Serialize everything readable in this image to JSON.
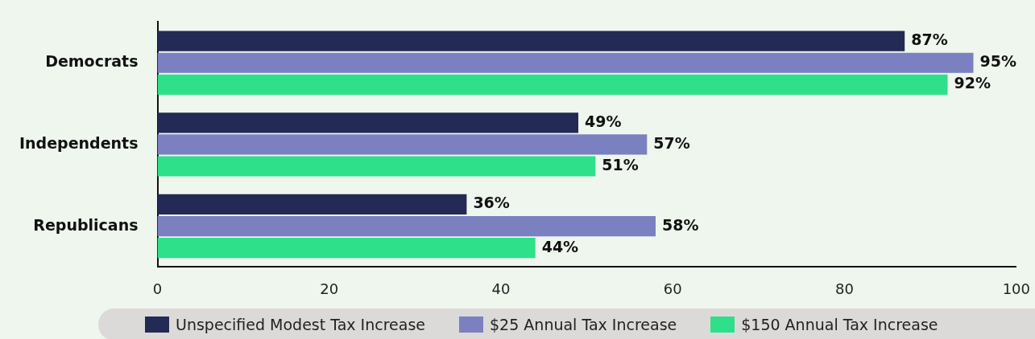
{
  "chart_data": {
    "type": "bar",
    "orientation": "horizontal",
    "categories": [
      "Democrats",
      "Independents",
      "Republicans"
    ],
    "series": [
      {
        "name": "Unspecified Modest Tax Increase",
        "color": "#232a55",
        "values": [
          87,
          49,
          36
        ],
        "value_labels": [
          "87%",
          "49%",
          "36%"
        ]
      },
      {
        "name": "$25 Annual Tax Increase",
        "color": "#7b80c0",
        "values": [
          95,
          57,
          58
        ],
        "value_labels": [
          "95%",
          "57%",
          "58%"
        ]
      },
      {
        "name": "$150 Annual Tax Increase",
        "color": "#2ee08a",
        "values": [
          92,
          51,
          44
        ],
        "value_labels": [
          "92%",
          "51%",
          "44%"
        ]
      }
    ],
    "xlim": [
      0,
      100
    ],
    "xticks": [
      0,
      20,
      40,
      60,
      80,
      100
    ],
    "grid": false,
    "legend": "bottom"
  }
}
